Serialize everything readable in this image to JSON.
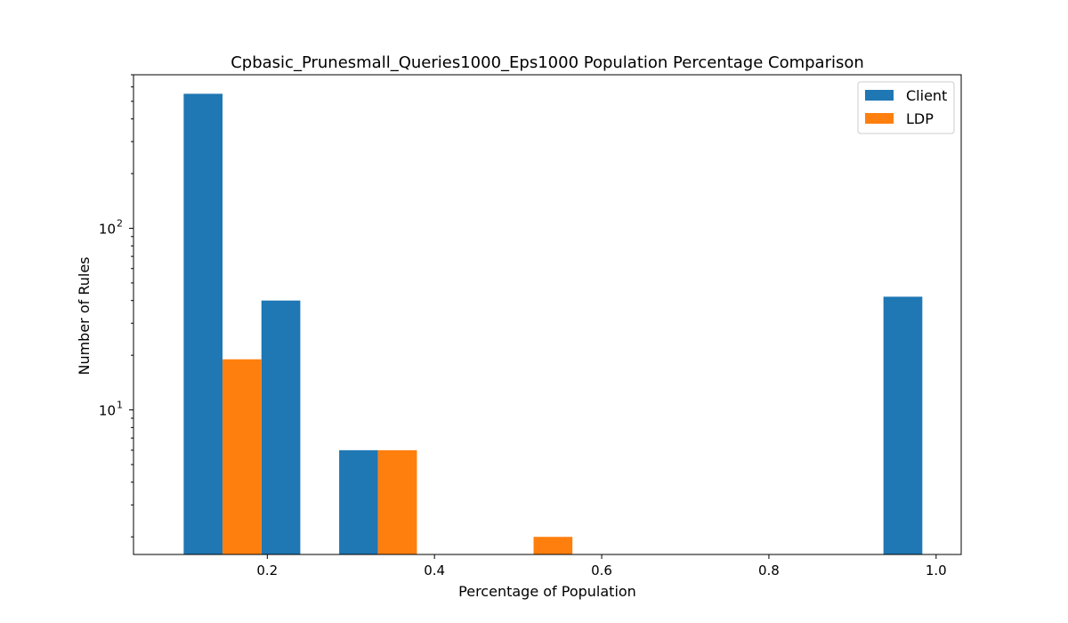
{
  "chart_data": {
    "type": "bar",
    "title": "Cpbasic_Prunesmall_Queries1000_Eps1000 Population Percentage Comparison",
    "xlabel": "Percentage of Population",
    "ylabel": "Number of Rules",
    "y_scale": "log",
    "xlim": [
      0.04,
      1.03
    ],
    "ylim": [
      1.6,
      700
    ],
    "bin_width": 0.0465,
    "x_ticks": [
      {
        "value": 0.2,
        "label": "0.2"
      },
      {
        "value": 0.4,
        "label": "0.4"
      },
      {
        "value": 0.6,
        "label": "0.6"
      },
      {
        "value": 0.8,
        "label": "0.8"
      },
      {
        "value": 1.0,
        "label": "1.0"
      }
    ],
    "y_ticks": [
      {
        "value": 10,
        "base": "10",
        "exp": "1"
      },
      {
        "value": 100,
        "base": "10",
        "exp": "2"
      }
    ],
    "legend_position": "top-right",
    "series": [
      {
        "name": "Client",
        "color": "#1f77b4",
        "x": [
          0.1,
          0.193,
          0.286,
          0.937
        ],
        "values": [
          550,
          40,
          6,
          42
        ]
      },
      {
        "name": "LDP",
        "color": "#ff7f0e",
        "x": [
          0.1465,
          0.3325,
          0.5185
        ],
        "values": [
          19,
          6,
          2
        ]
      }
    ]
  }
}
